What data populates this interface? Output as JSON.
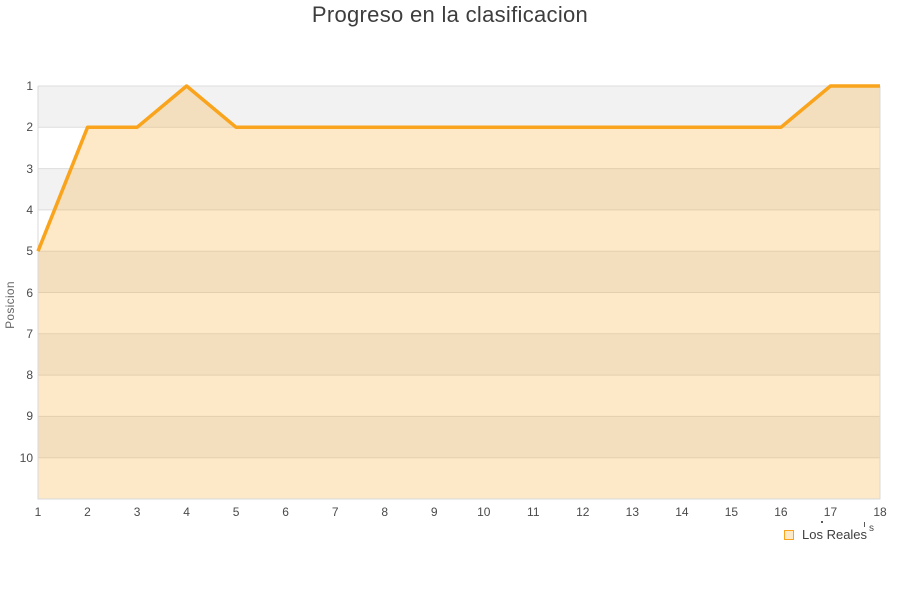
{
  "chart_data": {
    "type": "area",
    "title": "Progreso en la clasificacion",
    "xlabel": "",
    "ylabel": "Posicion",
    "x": [
      1,
      2,
      3,
      4,
      5,
      6,
      7,
      8,
      9,
      10,
      11,
      12,
      13,
      14,
      15,
      16,
      17,
      18
    ],
    "y_ticks": [
      1,
      2,
      3,
      4,
      5,
      6,
      7,
      8,
      9,
      10
    ],
    "series": [
      {
        "name": "Los Reales",
        "values": [
          5,
          2,
          2,
          1,
          2,
          2,
          2,
          2,
          2,
          2,
          2,
          2,
          2,
          2,
          2,
          2,
          1,
          1
        ]
      }
    ],
    "xlim": [
      1,
      18
    ],
    "ylim": [
      1,
      11
    ],
    "y_axis_inverted": true,
    "grid": "horizontal-alternating-bands",
    "legend_position": "bottom-right"
  },
  "artifacts": {
    "clipped_letter": "s"
  },
  "colors": {
    "line": "#F9A41C",
    "area_fill": "rgba(247,166,35,0.25)",
    "band_shaded": "#F2F2F2",
    "band_plain": "#FFFFFF",
    "gridline": "#DDDDDD",
    "plot_border": "#D9D9D9",
    "title_text": "#3D3D3D",
    "tick_text": "#4A4A4A",
    "axis_title_text": "#666666",
    "legend_text": "#3F3F3F",
    "legend_swatch_fill": "#FBE9C8"
  }
}
